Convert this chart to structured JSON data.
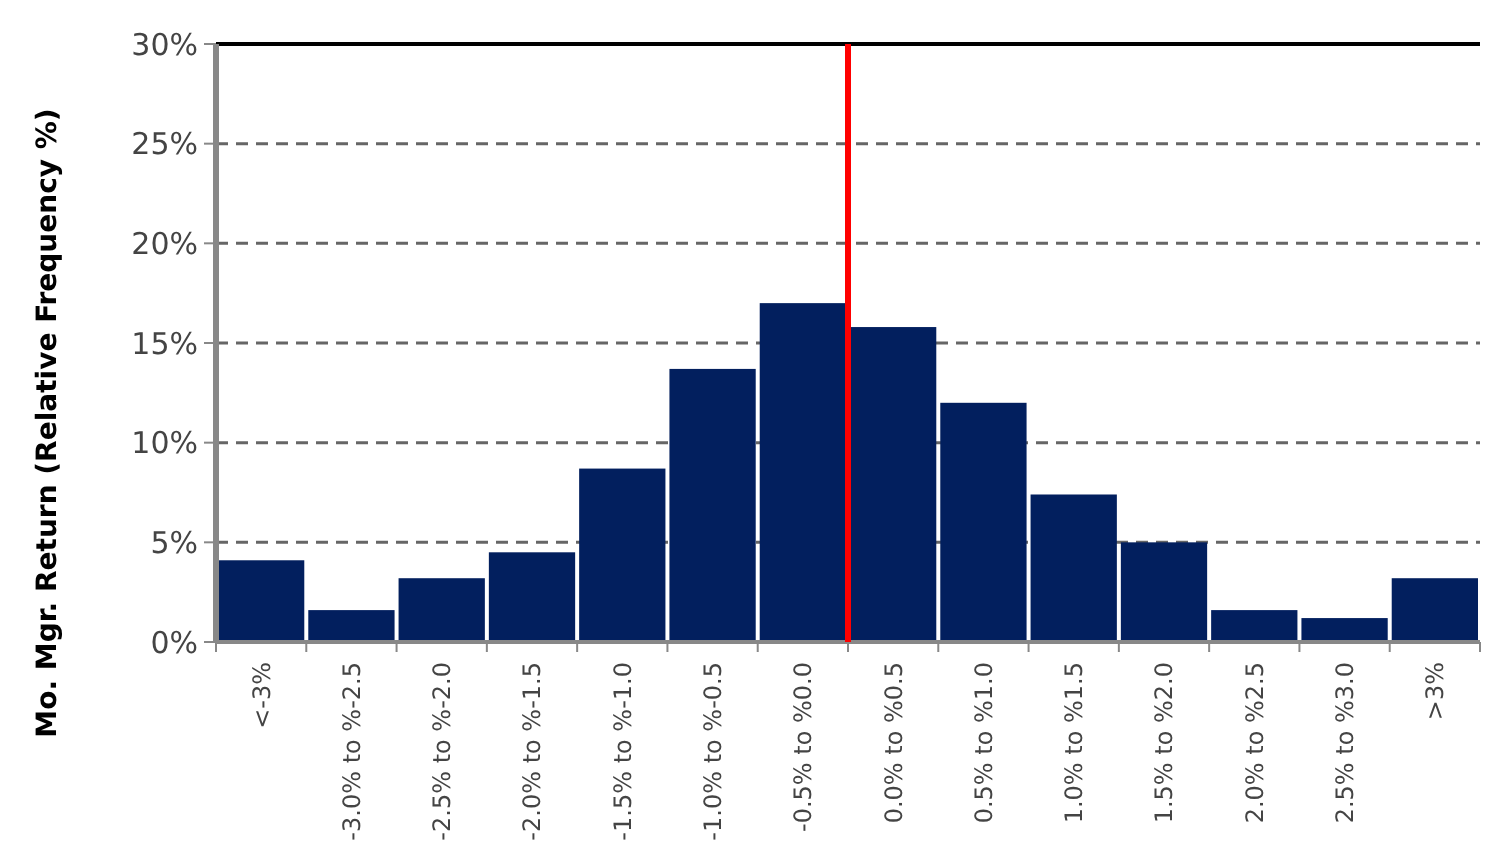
{
  "chart_data": {
    "type": "bar",
    "ylabel": "Mo. Mgr. Return (Relative Frequency %)",
    "categories": [
      "<-3%",
      "-3.0% to %-2.5",
      "-2.5% to %-2.0",
      "-2.0% to %-1.5",
      "-1.5% to %-1.0",
      "-1.0% to %-0.5",
      "-0.5% to %0.0",
      "0.0% to %0.5",
      "0.5% to %1.0",
      "1.0% to %1.5",
      "1.5% to %2.0",
      "2.0% to %2.5",
      "2.5% to %3.0",
      ">3%"
    ],
    "values": [
      4.1,
      1.6,
      3.2,
      4.5,
      8.7,
      13.7,
      17.0,
      15.8,
      12.0,
      7.4,
      5.0,
      1.6,
      1.2,
      3.2
    ],
    "color": "#021f5e",
    "ylim": [
      0,
      30
    ],
    "yticks": [
      {
        "value": 0,
        "label": "0%"
      },
      {
        "value": 5,
        "label": "5%"
      },
      {
        "value": 10,
        "label": "10%"
      },
      {
        "value": 15,
        "label": "15%"
      },
      {
        "value": 20,
        "label": "20%"
      },
      {
        "value": 25,
        "label": "25%"
      },
      {
        "value": 30,
        "label": "30%"
      }
    ],
    "grid": "y",
    "ref_lines": [
      {
        "axis": "x",
        "value": "0.0% to %0.5",
        "color": "#ff0000"
      }
    ]
  }
}
